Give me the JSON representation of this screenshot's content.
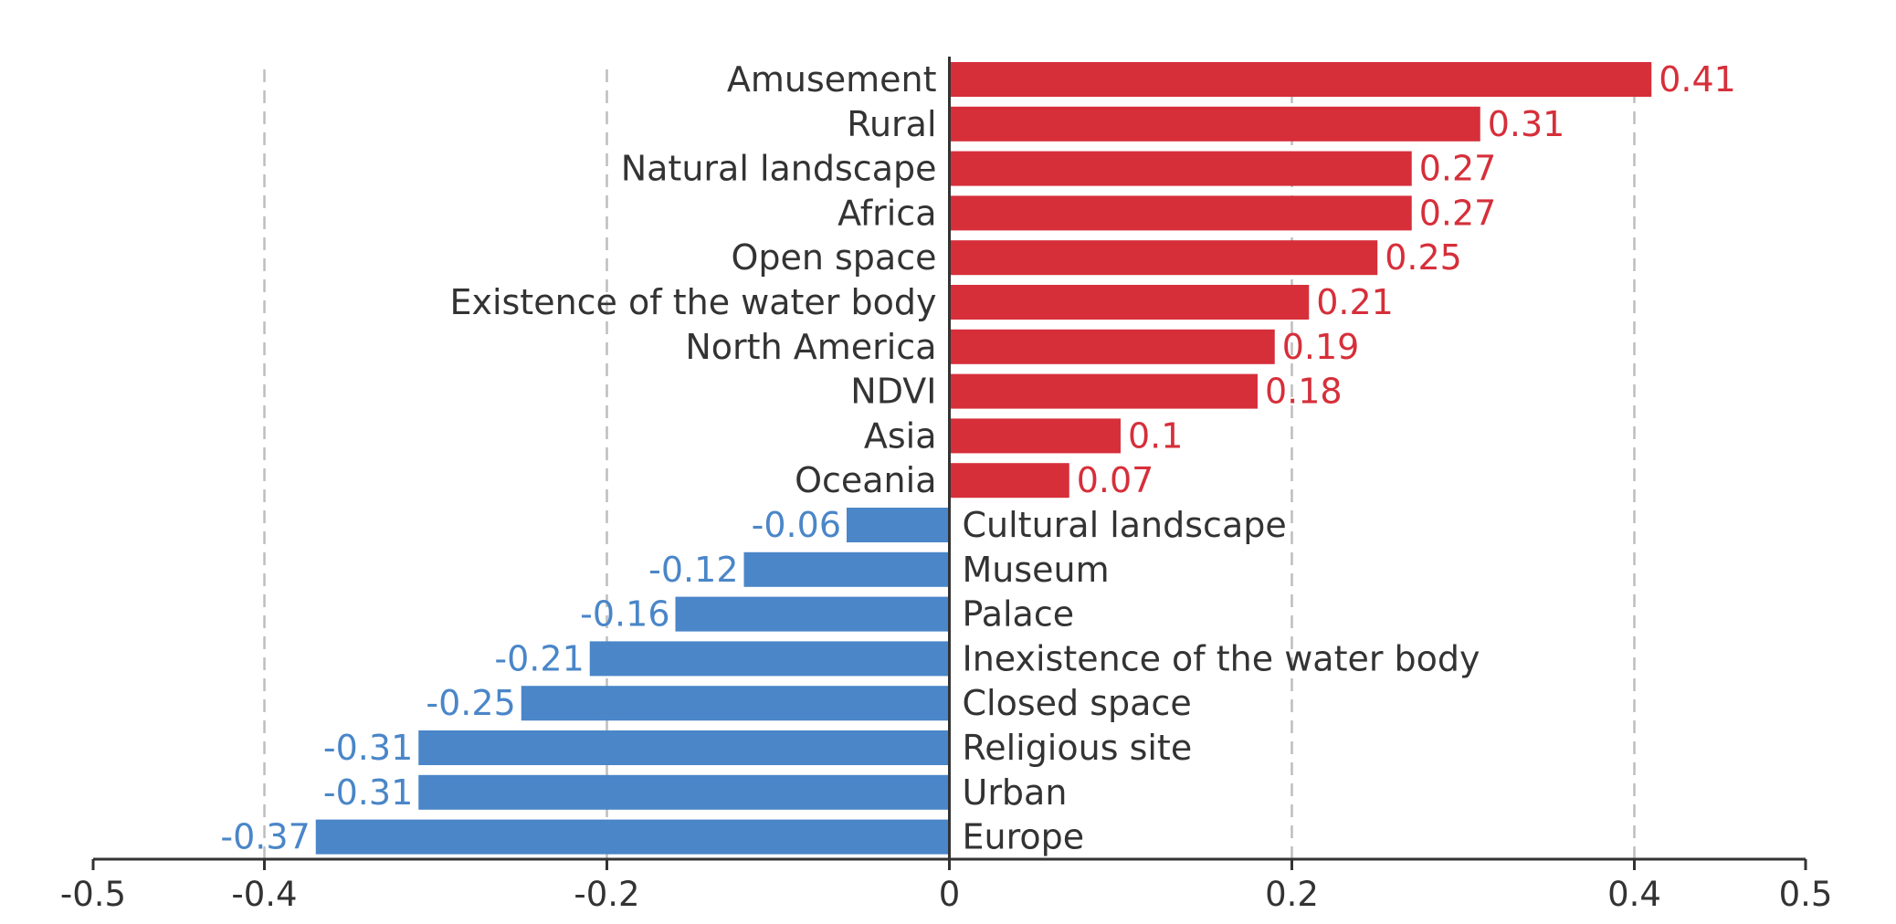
{
  "chart_data": {
    "type": "bar",
    "orientation": "horizontal",
    "title": "",
    "xlabel": "",
    "ylabel": "",
    "xlim": [
      -0.5,
      0.5
    ],
    "xticks": [
      -0.5,
      -0.4,
      -0.2,
      0,
      0.2,
      0.4,
      0.5
    ],
    "xtick_labels": [
      "-0.5",
      "-0.4",
      "-0.2",
      "0",
      "0.2",
      "0.4",
      "0.5"
    ],
    "grid_lines_at": [
      -0.4,
      -0.2,
      0.2,
      0.4
    ],
    "grid": "vertical dashed",
    "legend": "none",
    "positive_color": "#d62f3a",
    "negative_color": "#4a86c8",
    "categories": [
      "Amusement",
      "Rural",
      "Natural landscape",
      "Africa",
      "Open space",
      "Existence of the water body",
      "North America",
      "NDVI",
      "Asia",
      "Oceania",
      "Cultural landscape",
      "Museum",
      "Palace",
      "Inexistence of the water body",
      "Closed space",
      "Religious site",
      "Urban",
      "Europe"
    ],
    "values": [
      0.41,
      0.31,
      0.27,
      0.27,
      0.25,
      0.21,
      0.19,
      0.18,
      0.1,
      0.07,
      -0.06,
      -0.12,
      -0.16,
      -0.21,
      -0.25,
      -0.31,
      -0.31,
      -0.37
    ],
    "value_labels": [
      "0.41",
      "0.31",
      "0.27",
      "0.27",
      "0.25",
      "0.21",
      "0.19",
      "0.18",
      "0.1",
      "0.07",
      "-0.06",
      "-0.12",
      "-0.16",
      "-0.21",
      "-0.25",
      "-0.31",
      "-0.31",
      "-0.37"
    ]
  }
}
